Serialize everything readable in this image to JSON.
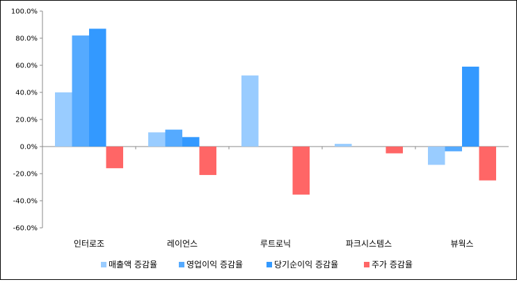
{
  "chart_data": {
    "type": "bar",
    "title": "",
    "xlabel": "",
    "ylabel": "",
    "categories": [
      "인터로조",
      "레이언스",
      "루트로닉",
      "파크시스템스",
      "뷰웍스"
    ],
    "series": [
      {
        "name": "매출액 증감율",
        "color": "#99ccff",
        "values": [
          40.0,
          10.5,
          52.5,
          2.0,
          -13.5
        ]
      },
      {
        "name": "영업이익 증감율",
        "color": "#55aaff",
        "values": [
          82.0,
          12.5,
          0,
          0,
          -3.5
        ]
      },
      {
        "name": "당기순이익 증감율",
        "color": "#3399ff",
        "values": [
          87.0,
          7.0,
          0,
          0,
          59.0
        ]
      },
      {
        "name": "주가 증감율",
        "color": "#ff6666",
        "values": [
          -16.0,
          -21.0,
          -35.5,
          -5.0,
          -25.0
        ]
      }
    ],
    "ylim": [
      -60,
      100
    ],
    "yticks": [
      "-60.0%",
      "-40.0%",
      "-20.0%",
      "0.0%",
      "20.0%",
      "40.0%",
      "60.0%",
      "80.0%",
      "100.0%"
    ],
    "grid": false,
    "legend": "bottom"
  }
}
